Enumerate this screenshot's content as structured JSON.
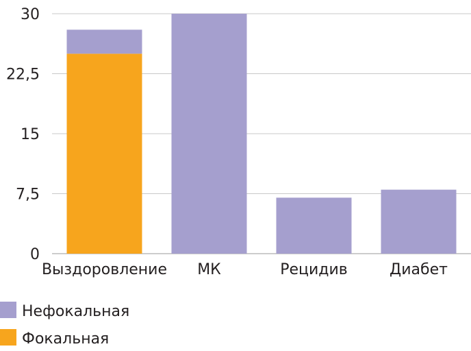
{
  "chart_data": {
    "type": "bar",
    "stacked": true,
    "categories": [
      "Выздоровление",
      "МК",
      "Рецидив",
      "Диабет"
    ],
    "series": [
      {
        "name": "Фокальная",
        "color": "#f7a51d",
        "values": [
          25,
          0,
          0,
          0
        ]
      },
      {
        "name": "Нефокальная",
        "color": "#a59fce",
        "values": [
          3,
          30,
          7,
          8
        ]
      }
    ],
    "ylim": [
      0,
      30
    ],
    "yticks": [
      0,
      7.5,
      15,
      22.5,
      30
    ],
    "ytick_labels": [
      "0",
      "7,5",
      "15",
      "22,5",
      "30"
    ],
    "grid": true,
    "legend_position": "bottom-left",
    "legend_order": [
      "Нефокальная",
      "Фокальная"
    ]
  }
}
